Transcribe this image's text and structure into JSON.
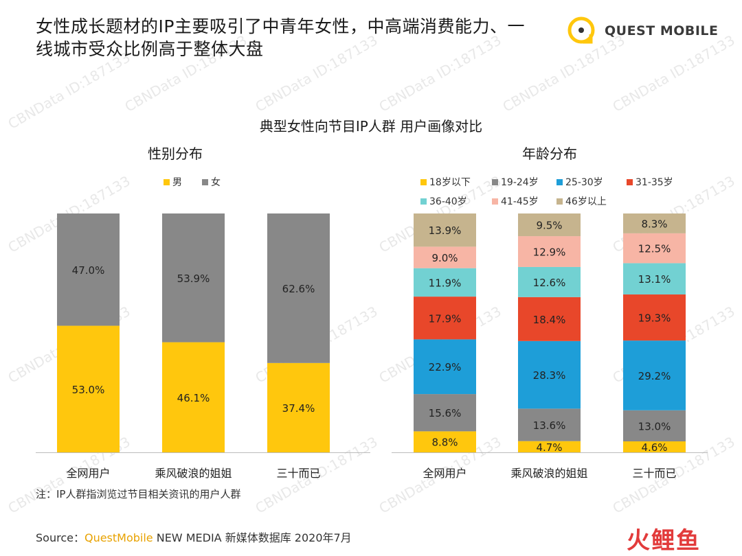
{
  "headline_line1": "女性成长题材的IP主要吸引了中青年女性，中高端消费能力、一",
  "headline_line2": "线城市受众比例高于整体大盘",
  "logo_text": "QUEST MOBILE",
  "watermark_text": "CBNData ID:187133",
  "main_title": "典型女性向节目IP人群 用户画像对比",
  "note": "注：IP人群指浏览过节目相关资讯的用户人群",
  "source": {
    "label": "Source：",
    "brand": "QuestMobile",
    "rest": " NEW MEDIA 新媒体数据库 2020年7月"
  },
  "corner_logo": "火鲤鱼",
  "colors": {
    "male": "#FFC70D",
    "female": "#888888",
    "age_lt18": "#FFC70D",
    "age_19_24": "#888888",
    "age_25_30": "#1E9ED8",
    "age_31_35": "#E8472A",
    "age_36_40": "#72D1D2",
    "age_41_45": "#F7B5A5",
    "age_46p": "#C6B48E"
  },
  "chart_data": [
    {
      "type": "bar",
      "stacked": true,
      "title": "性别分布",
      "categories": [
        "全网用户",
        "乘风破浪的姐姐",
        "三十而已"
      ],
      "legend_position": "top",
      "series": [
        {
          "name": "男",
          "color": "#FFC70D",
          "values": [
            53.0,
            46.1,
            37.4
          ],
          "labels": [
            "53.0%",
            "46.1%",
            "37.4%"
          ]
        },
        {
          "name": "女",
          "color": "#888888",
          "values": [
            47.0,
            53.9,
            62.6
          ],
          "labels": [
            "47.0%",
            "53.9%",
            "62.6%"
          ]
        }
      ],
      "ylim": [
        0,
        100
      ]
    },
    {
      "type": "bar",
      "stacked": true,
      "title": "年龄分布",
      "categories": [
        "全网用户",
        "乘风破浪的姐姐",
        "三十而已"
      ],
      "legend_position": "top",
      "series": [
        {
          "name": "18岁以下",
          "color": "#FFC70D",
          "values": [
            8.8,
            4.7,
            4.6
          ],
          "labels": [
            "8.8%",
            "4.7%",
            "4.6%"
          ]
        },
        {
          "name": "19-24岁",
          "color": "#888888",
          "values": [
            15.6,
            13.6,
            13.0
          ],
          "labels": [
            "15.6%",
            "13.6%",
            "13.0%"
          ]
        },
        {
          "name": "25-30岁",
          "color": "#1E9ED8",
          "values": [
            22.9,
            28.3,
            29.2
          ],
          "labels": [
            "22.9%",
            "28.3%",
            "29.2%"
          ]
        },
        {
          "name": "31-35岁",
          "color": "#E8472A",
          "values": [
            17.9,
            18.4,
            19.3
          ],
          "labels": [
            "17.9%",
            "18.4%",
            "19.3%"
          ]
        },
        {
          "name": "36-40岁",
          "color": "#72D1D2",
          "values": [
            11.9,
            12.6,
            13.1
          ],
          "labels": [
            "11.9%",
            "12.6%",
            "13.1%"
          ]
        },
        {
          "name": "41-45岁",
          "color": "#F7B5A5",
          "values": [
            9.0,
            12.9,
            12.5
          ],
          "labels": [
            "9.0%",
            "12.9%",
            "12.5%"
          ]
        },
        {
          "name": "46岁以上",
          "color": "#C6B48E",
          "values": [
            13.9,
            9.5,
            8.3
          ],
          "labels": [
            "13.9%",
            "9.5%",
            "8.3%"
          ]
        }
      ],
      "ylim": [
        0,
        100
      ]
    }
  ]
}
